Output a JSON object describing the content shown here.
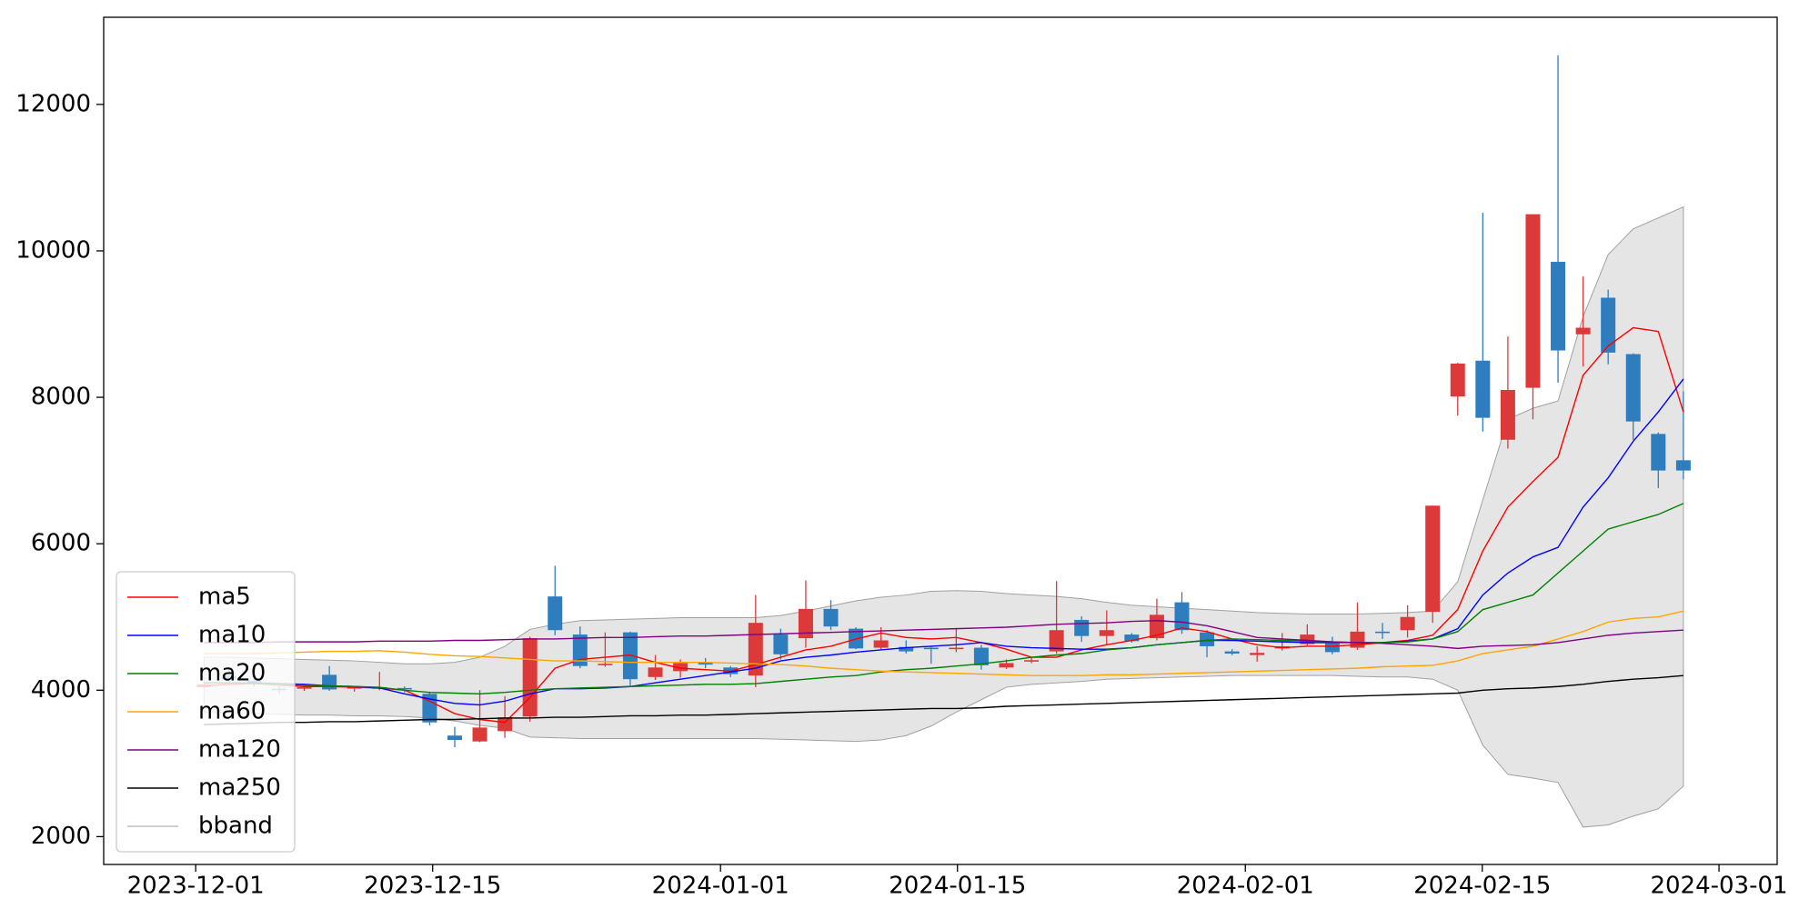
{
  "chart_data": {
    "type": "candlestick",
    "up_color": "#dc3a3a",
    "down_color": "#2e7ebf",
    "legend": "lower left",
    "ylim": [
      1620,
      13190
    ],
    "yticks": [
      2000,
      4000,
      6000,
      8000,
      10000,
      12000
    ],
    "xlim": [
      -4.0,
      62.74
    ],
    "xticks": [
      {
        "value": -0.33,
        "label": "2023-12-01"
      },
      {
        "value": 9.12,
        "label": "2023-12-15"
      },
      {
        "value": 20.6,
        "label": "2024-01-01"
      },
      {
        "value": 30.05,
        "label": "2024-01-15"
      },
      {
        "value": 41.53,
        "label": "2024-02-01"
      },
      {
        "value": 50.98,
        "label": "2024-02-15"
      },
      {
        "value": 60.42,
        "label": "2024-03-01"
      }
    ],
    "open": [
      4040,
      4200,
      4130,
      4020,
      4020,
      4210,
      4030,
      4020,
      4030,
      3950,
      3380,
      3300,
      3440,
      3640,
      5280,
      4760,
      4340,
      4790,
      4180,
      4260,
      4380,
      4310,
      4200,
      4760,
      4710,
      5110,
      4840,
      4580,
      4590,
      4580,
      4560,
      4580,
      4310,
      4390,
      4530,
      4960,
      4740,
      4760,
      4710,
      5200,
      4790,
      4530,
      4480,
      4570,
      4630,
      4640,
      4580,
      4800,
      4820,
      5070,
      8010,
      8500,
      7420,
      8130,
      9850,
      8860,
      9360,
      8590,
      7500,
      7140
    ],
    "high": [
      4100,
      4300,
      4150,
      4050,
      4080,
      4330,
      4060,
      4250,
      4050,
      3980,
      3500,
      4000,
      3920,
      4730,
      5700,
      4870,
      4790,
      4800,
      4480,
      4420,
      4440,
      4330,
      5300,
      4840,
      5500,
      5230,
      4860,
      4860,
      4680,
      4600,
      4850,
      4620,
      4420,
      4450,
      5490,
      5010,
      5090,
      4780,
      5250,
      5340,
      4820,
      4560,
      4600,
      4780,
      4900,
      4730,
      5200,
      4920,
      5160,
      6520,
      8470,
      10520,
      8830,
      10500,
      12670,
      9650,
      9470,
      8600,
      7520,
      8080
    ],
    "low": [
      4030,
      4100,
      4050,
      3950,
      3990,
      3990,
      3980,
      4000,
      3970,
      3520,
      3220,
      3290,
      3350,
      3570,
      4750,
      4300,
      4320,
      4050,
      4140,
      4170,
      4300,
      4180,
      4040,
      4420,
      4580,
      4820,
      4560,
      4560,
      4500,
      4360,
      4520,
      4280,
      4290,
      4370,
      4500,
      4660,
      4620,
      4650,
      4680,
      4770,
      4450,
      4480,
      4390,
      4540,
      4610,
      4490,
      4550,
      4700,
      4720,
      4920,
      7750,
      7530,
      7300,
      7700,
      8200,
      8420,
      8450,
      7420,
      6760,
      6880
    ],
    "close": [
      4080,
      4150,
      4090,
      4000,
      4040,
      4010,
      4040,
      4040,
      4010,
      3560,
      3320,
      3490,
      3630,
      4710,
      4820,
      4330,
      4360,
      4150,
      4310,
      4370,
      4350,
      4220,
      4920,
      4490,
      5110,
      4870,
      4570,
      4680,
      4530,
      4560,
      4580,
      4340,
      4370,
      4410,
      4820,
      4740,
      4820,
      4670,
      5030,
      4820,
      4600,
      4500,
      4510,
      4600,
      4760,
      4520,
      4800,
      4780,
      5000,
      6520,
      8460,
      7720,
      8100,
      10500,
      8640,
      8950,
      8610,
      7670,
      7000,
      7000
    ],
    "series": [
      {
        "name": "ma5",
        "color": "#ff0000",
        "values": [
          4060,
          4080,
          4090,
          4070,
          4050,
          4050,
          4040,
          4030,
          4000,
          3850,
          3680,
          3600,
          3560,
          3900,
          4300,
          4420,
          4450,
          4480,
          4380,
          4300,
          4280,
          4260,
          4350,
          4450,
          4550,
          4600,
          4700,
          4780,
          4720,
          4700,
          4720,
          4650,
          4560,
          4450,
          4450,
          4550,
          4620,
          4680,
          4750,
          4850,
          4800,
          4700,
          4620,
          4580,
          4600,
          4600,
          4620,
          4650,
          4680,
          4750,
          5100,
          5900,
          6500,
          6850,
          7180,
          8300,
          8700,
          8950,
          8900,
          7800
        ]
      },
      {
        "name": "ma10",
        "color": "#0000ff",
        "values": [
          4100,
          4100,
          4100,
          4090,
          4080,
          4060,
          4050,
          4030,
          3950,
          3880,
          3820,
          3800,
          3850,
          3950,
          4020,
          4020,
          4030,
          4050,
          4100,
          4150,
          4200,
          4250,
          4300,
          4400,
          4450,
          4480,
          4520,
          4550,
          4580,
          4600,
          4620,
          4650,
          4600,
          4580,
          4570,
          4560,
          4560,
          4580,
          4620,
          4650,
          4680,
          4680,
          4670,
          4660,
          4650,
          4650,
          4650,
          4650,
          4670,
          4700,
          4840,
          5300,
          5600,
          5820,
          5950,
          6500,
          6900,
          7400,
          7800,
          8250
        ]
      },
      {
        "name": "ma20",
        "color": "#008000",
        "values": [
          4100,
          4100,
          4090,
          4080,
          4070,
          4060,
          4050,
          4040,
          4000,
          3970,
          3960,
          3950,
          3970,
          4000,
          4020,
          4030,
          4040,
          4050,
          4060,
          4070,
          4080,
          4080,
          4090,
          4120,
          4150,
          4180,
          4200,
          4250,
          4280,
          4300,
          4330,
          4360,
          4400,
          4450,
          4480,
          4500,
          4550,
          4580,
          4620,
          4650,
          4680,
          4700,
          4690,
          4680,
          4670,
          4660,
          4650,
          4650,
          4660,
          4700,
          4800,
          5100,
          5200,
          5300,
          5600,
          5900,
          6200,
          6300,
          6400,
          6550
        ]
      },
      {
        "name": "ma60",
        "color": "#ffa500",
        "values": [
          4500,
          4500,
          4500,
          4510,
          4520,
          4530,
          4530,
          4540,
          4520,
          4490,
          4470,
          4460,
          4440,
          4420,
          4400,
          4400,
          4390,
          4380,
          4380,
          4380,
          4380,
          4370,
          4360,
          4350,
          4330,
          4300,
          4280,
          4260,
          4250,
          4240,
          4230,
          4220,
          4210,
          4200,
          4200,
          4200,
          4210,
          4210,
          4220,
          4230,
          4240,
          4250,
          4260,
          4270,
          4280,
          4290,
          4300,
          4320,
          4330,
          4340,
          4400,
          4500,
          4550,
          4600,
          4700,
          4800,
          4930,
          4980,
          5000,
          5080
        ]
      },
      {
        "name": "ma120",
        "color": "#800080",
        "values": [
          4650,
          4650,
          4650,
          4660,
          4660,
          4660,
          4660,
          4670,
          4670,
          4670,
          4680,
          4680,
          4690,
          4700,
          4700,
          4710,
          4720,
          4720,
          4730,
          4740,
          4740,
          4750,
          4760,
          4770,
          4780,
          4790,
          4800,
          4810,
          4820,
          4830,
          4840,
          4850,
          4860,
          4880,
          4900,
          4910,
          4920,
          4940,
          4950,
          4930,
          4880,
          4800,
          4720,
          4700,
          4680,
          4660,
          4650,
          4640,
          4620,
          4600,
          4570,
          4600,
          4610,
          4620,
          4650,
          4700,
          4750,
          4780,
          4800,
          4820
        ]
      },
      {
        "name": "ma250",
        "color": "#000000",
        "values": [
          3530,
          3540,
          3550,
          3560,
          3560,
          3570,
          3570,
          3580,
          3590,
          3600,
          3600,
          3610,
          3620,
          3620,
          3630,
          3630,
          3640,
          3650,
          3650,
          3660,
          3660,
          3670,
          3680,
          3690,
          3700,
          3710,
          3720,
          3730,
          3740,
          3750,
          3750,
          3760,
          3780,
          3790,
          3800,
          3810,
          3820,
          3830,
          3840,
          3850,
          3860,
          3870,
          3880,
          3890,
          3900,
          3910,
          3920,
          3930,
          3940,
          3950,
          3960,
          4000,
          4020,
          4030,
          4050,
          4080,
          4120,
          4150,
          4170,
          4200
        ]
      }
    ],
    "band": {
      "name": "bband",
      "color": "#a0a0a0",
      "fill": "#e5e5e5",
      "upper": [
        4450,
        4450,
        4440,
        4430,
        4420,
        4410,
        4400,
        4380,
        4360,
        4360,
        4380,
        4450,
        4600,
        4830,
        4900,
        4950,
        4960,
        4970,
        4980,
        4990,
        4990,
        4990,
        4990,
        5020,
        5080,
        5150,
        5220,
        5270,
        5300,
        5350,
        5360,
        5350,
        5320,
        5300,
        5280,
        5250,
        5200,
        5160,
        5140,
        5120,
        5100,
        5080,
        5060,
        5050,
        5040,
        5040,
        5040,
        5050,
        5060,
        5080,
        5480,
        6600,
        7700,
        7850,
        7950,
        9100,
        9950,
        10300,
        10450,
        10600
      ],
      "lower": [
        3700,
        3690,
        3680,
        3670,
        3660,
        3660,
        3650,
        3650,
        3640,
        3620,
        3580,
        3520,
        3480,
        3360,
        3350,
        3340,
        3340,
        3340,
        3340,
        3340,
        3340,
        3340,
        3340,
        3330,
        3320,
        3310,
        3300,
        3320,
        3380,
        3510,
        3700,
        3870,
        4040,
        4080,
        4100,
        4120,
        4150,
        4160,
        4170,
        4180,
        4190,
        4200,
        4200,
        4200,
        4200,
        4200,
        4190,
        4180,
        4180,
        4150,
        4000,
        3250,
        2850,
        2800,
        2740,
        2130,
        2160,
        2280,
        2380,
        2690
      ]
    }
  }
}
